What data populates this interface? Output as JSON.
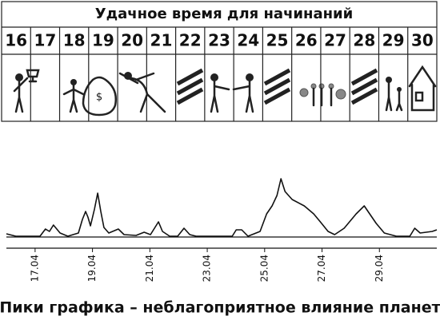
{
  "header": {
    "title": "Удачное время для начинаний"
  },
  "days": [
    "16",
    "17",
    "18",
    "19",
    "20",
    "21",
    "22",
    "23",
    "24",
    "25",
    "26",
    "27",
    "28",
    "29",
    "30"
  ],
  "chart_data": {
    "type": "line",
    "color": "#111111",
    "x": [
      16.0,
      16.33,
      17.17,
      17.36,
      17.5,
      17.64,
      17.87,
      18.14,
      18.51,
      18.65,
      18.76,
      18.84,
      18.93,
      19.07,
      19.18,
      19.29,
      19.4,
      19.57,
      19.9,
      20.1,
      20.52,
      20.8,
      21.02,
      21.16,
      21.3,
      21.44,
      21.69,
      21.97,
      22.19,
      22.39,
      22.61,
      23.87,
      24.01,
      24.2,
      24.42,
      24.84,
      25.07,
      25.26,
      25.43,
      25.57,
      25.71,
      25.96,
      26.38,
      26.71,
      26.94,
      27.21,
      27.44,
      27.77,
      28.19,
      28.47,
      28.66,
      28.89,
      29.17,
      29.59,
      30.06,
      30.23,
      30.42,
      30.84,
      31.0
    ],
    "values": [
      4,
      1,
      1,
      10,
      7,
      15,
      5,
      1,
      5,
      22,
      32,
      25,
      14,
      35,
      55,
      32,
      12,
      5,
      10,
      3,
      2,
      6,
      3,
      11,
      19,
      7,
      1,
      1,
      11,
      3,
      1,
      1,
      9,
      9,
      1,
      7,
      29,
      39,
      52,
      73,
      57,
      47,
      39,
      29,
      19,
      7,
      3,
      11,
      29,
      39,
      29,
      17,
      5,
      1,
      1,
      11,
      5,
      7,
      9
    ],
    "xlim": [
      16,
      31
    ],
    "ylim": [
      0,
      90
    ],
    "xticks": [
      {
        "value": 17,
        "label": "17.04"
      },
      {
        "value": 19,
        "label": "19.04"
      },
      {
        "value": 21,
        "label": "21.04"
      },
      {
        "value": 23,
        "label": "23.04"
      },
      {
        "value": 25,
        "label": "25.04"
      },
      {
        "value": 27,
        "label": "27.04"
      },
      {
        "value": 29,
        "label": "29.04"
      }
    ],
    "caption": "Пики графика – неблагоприятное влияние планет"
  }
}
